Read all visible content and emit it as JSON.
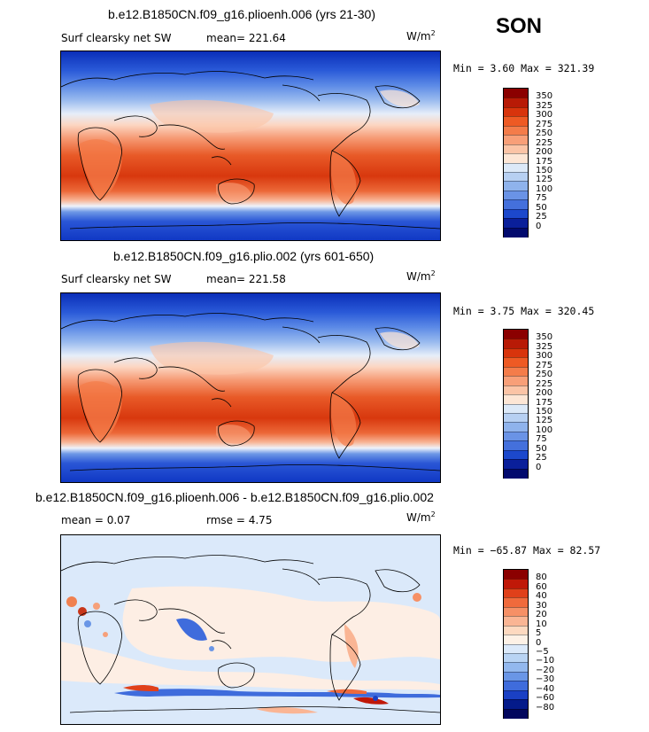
{
  "season": "SON",
  "panels": [
    {
      "title": "b.e12.B1850CN.f09_g16.plioenh.006 (yrs 21-30)",
      "left_label": "Surf clearsky net SW",
      "mid_label": "mean= 221.64",
      "units": "W/m",
      "units_sup": "2",
      "minmax": "Min =    3.60 Max = 321.39",
      "colorbar_labels": [
        "350",
        "325",
        "300",
        "275",
        "250",
        "225",
        "200",
        "175",
        "150",
        "125",
        "100",
        "75",
        "50",
        "25",
        "0"
      ],
      "colorbar_colors": [
        "#8b0000",
        "#b81a06",
        "#d8340c",
        "#ee5a24",
        "#f47c4a",
        "#f89f78",
        "#fbc4a6",
        "#fde6d5",
        "#dce9f8",
        "#b7d0f2",
        "#8fb3ec",
        "#6a93e6",
        "#4470dc",
        "#1c48cc",
        "#0a1f9a",
        "#020a6e"
      ]
    },
    {
      "title": "b.e12.B1850CN.f09_g16.plio.002 (yrs 601-650)",
      "left_label": "Surf clearsky net SW",
      "mid_label": "mean= 221.58",
      "units": "W/m",
      "units_sup": "2",
      "minmax": "Min =    3.75 Max = 320.45",
      "colorbar_labels": [
        "350",
        "325",
        "300",
        "275",
        "250",
        "225",
        "200",
        "175",
        "150",
        "125",
        "100",
        "75",
        "50",
        "25",
        "0"
      ],
      "colorbar_colors": [
        "#8b0000",
        "#b81a06",
        "#d8340c",
        "#ee5a24",
        "#f47c4a",
        "#f89f78",
        "#fbc4a6",
        "#fde6d5",
        "#dce9f8",
        "#b7d0f2",
        "#8fb3ec",
        "#6a93e6",
        "#4470dc",
        "#1c48cc",
        "#0a1f9a",
        "#020a6e"
      ]
    },
    {
      "title": "b.e12.B1850CN.f09_g16.plioenh.006 - b.e12.B1850CN.f09_g16.plio.002",
      "left_label": "mean =    0.07",
      "mid_label": "rmse =    4.75",
      "units": "W/m",
      "units_sup": "2",
      "minmax": "Min = −65.87 Max =  82.57",
      "colorbar_labels": [
        "80",
        "60",
        "40",
        "30",
        "20",
        "10",
        "5",
        "0",
        "−5",
        "−10",
        "−20",
        "−30",
        "−40",
        "−60",
        "−80"
      ],
      "colorbar_colors": [
        "#8b0000",
        "#c01808",
        "#e0401a",
        "#f06a3c",
        "#f69066",
        "#fab594",
        "#fdd9c0",
        "#fdf1e6",
        "#dbe9fa",
        "#b9d4f4",
        "#93b8ee",
        "#6a96e6",
        "#3f6cdc",
        "#1a40c4",
        "#041a8a",
        "#02075e"
      ]
    }
  ]
}
